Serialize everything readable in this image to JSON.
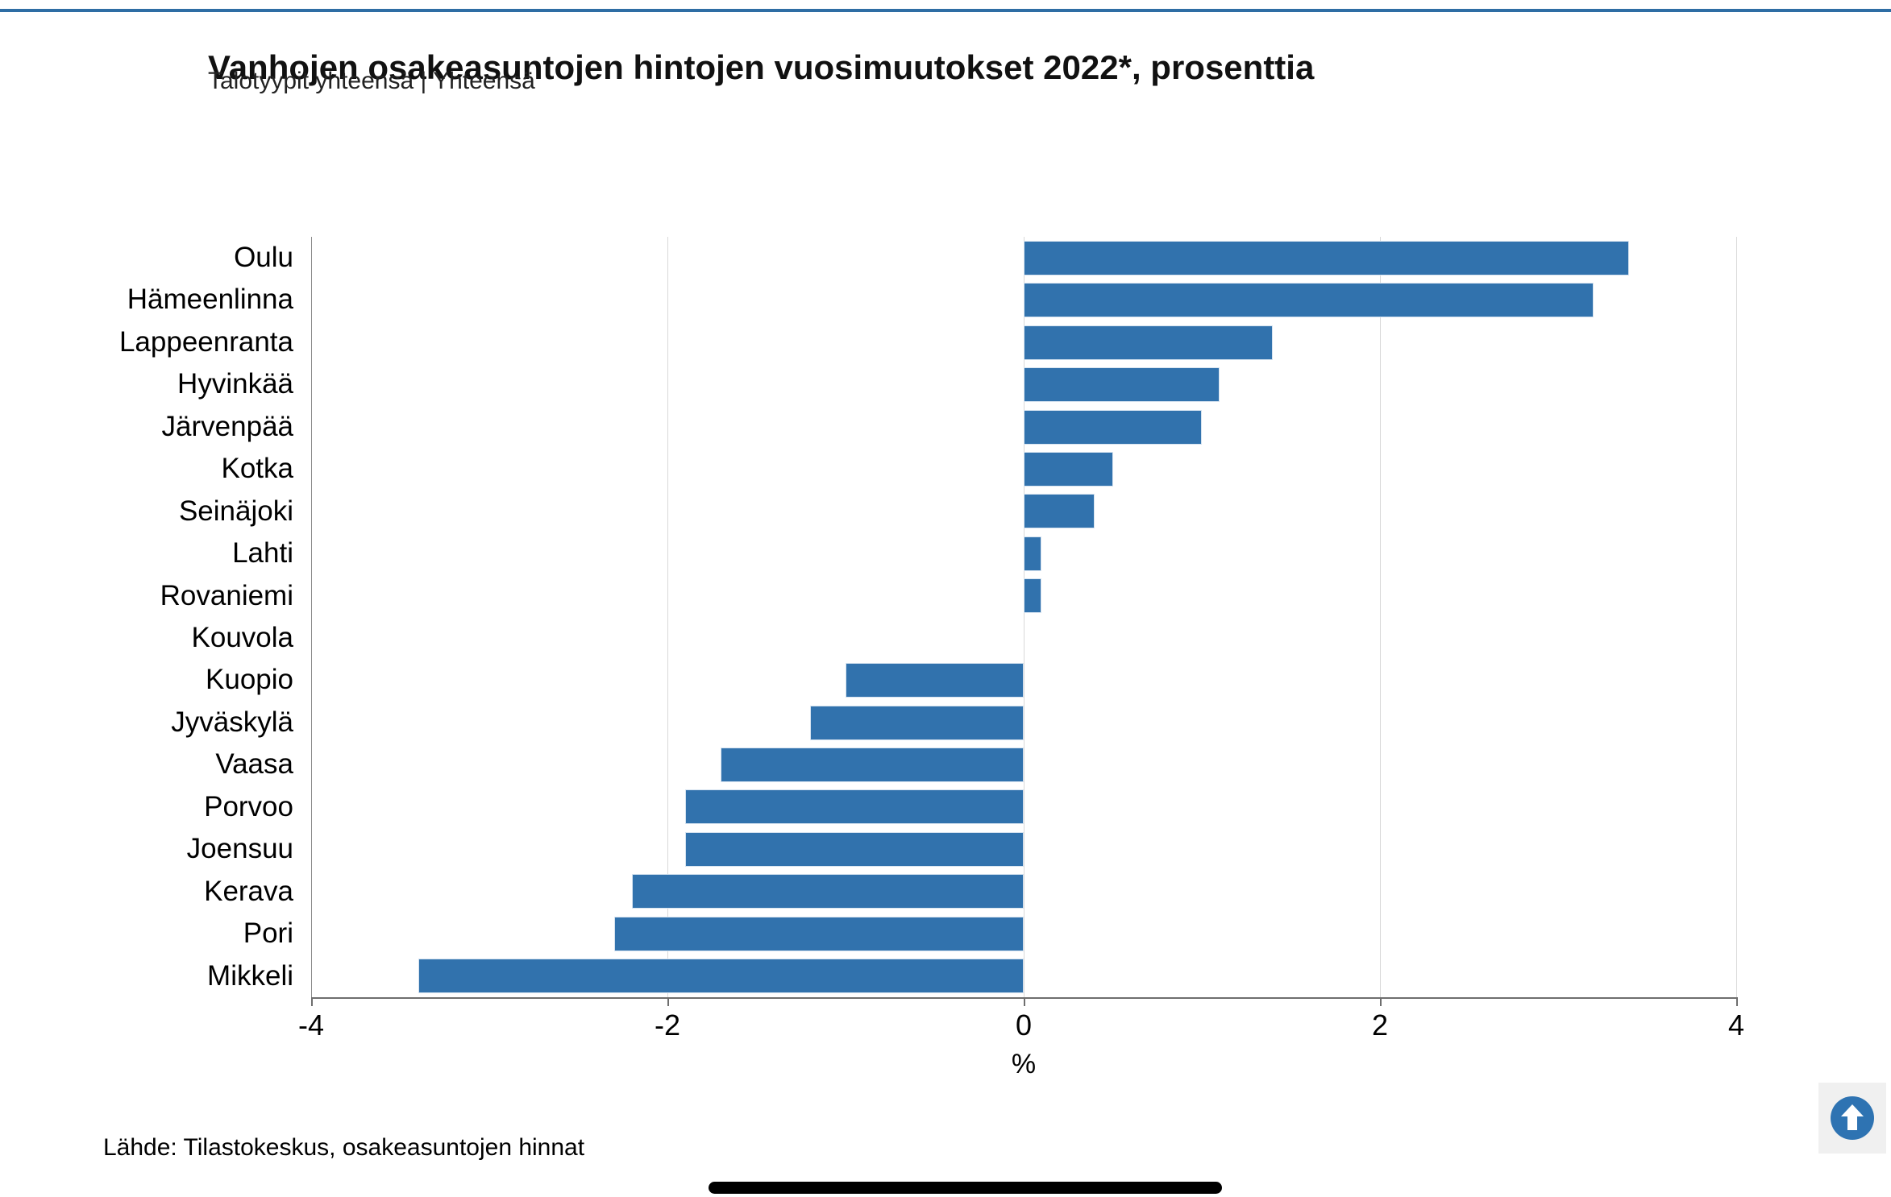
{
  "header": {
    "title": "Vanhojen osakeasuntojen hintojen vuosimuutokset 2022*, prosenttia",
    "subtitle": "Talotyypit yhteensä | Yhteensä"
  },
  "footer": {
    "source": "Lähde: Tilastokeskus, osakeasuntojen hinnat"
  },
  "colors": {
    "top_border": "#2e6da4",
    "bar": "#3172ad",
    "gridline": "#d9d9d9",
    "axis_line": "#6e6e6e",
    "button_background": "#f0f0f0",
    "button_circle": "#2e73b2",
    "button_arrow": "#ffffff",
    "bottom_handle": "#000000"
  },
  "scroll_top_button": {
    "icon": "arrow-up-circle-icon"
  },
  "chart_data": {
    "type": "bar",
    "orientation": "horizontal",
    "title": "Vanhojen osakeasuntojen hintojen vuosimuutokset 2022*, prosenttia",
    "subtitle": "Talotyypit yhteensä | Yhteensä",
    "categories": [
      "Oulu",
      "Hämeenlinna",
      "Lappeenranta",
      "Hyvinkää",
      "Järvenpää",
      "Kotka",
      "Seinäjoki",
      "Lahti",
      "Rovaniemi",
      "Kouvola",
      "Kuopio",
      "Jyväskylä",
      "Vaasa",
      "Porvoo",
      "Joensuu",
      "Kerava",
      "Pori",
      "Mikkeli"
    ],
    "values": [
      3.4,
      3.2,
      1.4,
      1.1,
      1.0,
      0.5,
      0.4,
      0.1,
      0.1,
      0.0,
      -1.0,
      -1.2,
      -1.7,
      -1.9,
      -1.9,
      -2.2,
      -2.3,
      -3.4
    ],
    "xlabel": "%",
    "xlim": [
      -4,
      4
    ],
    "xticks": [
      -4,
      -2,
      0,
      2,
      4
    ],
    "grid": true,
    "legend": false,
    "bar_color": "#3172ad",
    "source": "Lähde: Tilastokeskus, osakeasuntojen hinnat"
  }
}
